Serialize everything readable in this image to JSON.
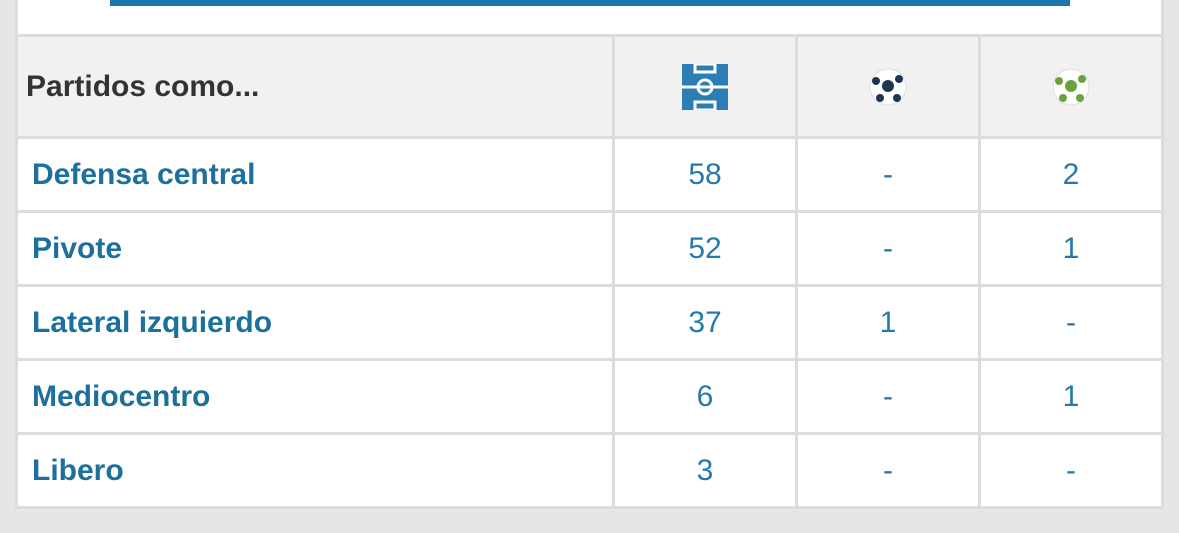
{
  "header": {
    "title": "Partidos como..."
  },
  "table": {
    "rows": [
      [
        "Defensa central",
        58,
        "-",
        2
      ],
      [
        "Pivote",
        52,
        "-",
        1
      ],
      [
        "Lateral izquierdo",
        37,
        1,
        "-"
      ],
      [
        "Mediocentro",
        6,
        "-",
        1
      ],
      [
        "Libero",
        3,
        "-",
        "-"
      ]
    ]
  }
}
